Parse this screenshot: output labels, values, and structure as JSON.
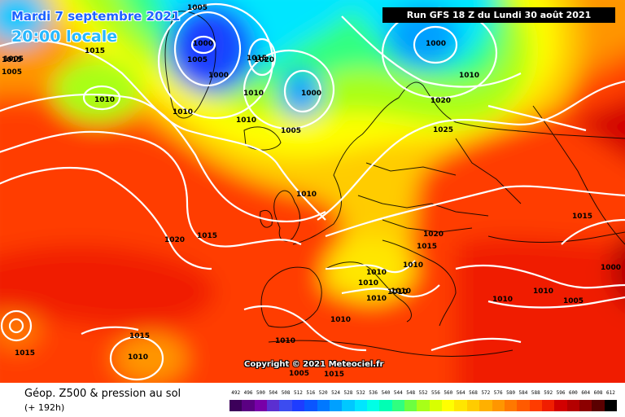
{
  "header": {
    "date": "Mardi 7 septembre 2021",
    "time": "20:00 locale",
    "run": "Run GFS 18 Z du Lundi 30 août 2021"
  },
  "copyright": "Copyright © 2021 Meteociel.fr",
  "footer": {
    "title": "Géop. Z500 & pression au sol",
    "subtitle": "(+ 192h)"
  },
  "scale": {
    "labels": [
      "492",
      "496",
      "500",
      "504",
      "508",
      "512",
      "516",
      "520",
      "524",
      "528",
      "532",
      "536",
      "540",
      "544",
      "548",
      "552",
      "556",
      "560",
      "564",
      "568",
      "572",
      "576",
      "580",
      "584",
      "588",
      "592",
      "596",
      "600",
      "604",
      "608",
      "612"
    ],
    "colors": [
      "#3c005a",
      "#5a0082",
      "#7800a8",
      "#5b2fd0",
      "#3c4cf0",
      "#1e3cff",
      "#0a55ff",
      "#0078ff",
      "#00a0ff",
      "#00c8ff",
      "#00e6ff",
      "#00ffe6",
      "#00ffb4",
      "#30ff80",
      "#6cff40",
      "#a8ff18",
      "#d8ff00",
      "#ffff00",
      "#ffe600",
      "#ffcc00",
      "#ffb000",
      "#ff9600",
      "#ff7800",
      "#ff5a00",
      "#ff3c00",
      "#f01e00",
      "#d20000",
      "#b40000",
      "#8c0000",
      "#5a0000",
      "#000000"
    ]
  },
  "isobars": [
    {
      "text": "1005"
    },
    {
      "text": "1005"
    },
    {
      "text": "1015"
    },
    {
      "text": "1000"
    },
    {
      "text": "1005"
    },
    {
      "text": "1000"
    },
    {
      "text": "1015"
    },
    {
      "text": "1020"
    },
    {
      "text": "1010"
    },
    {
      "text": "1000"
    },
    {
      "text": "1010"
    },
    {
      "text": "1005"
    },
    {
      "text": "1010"
    },
    {
      "text": "1010"
    },
    {
      "text": "1005"
    },
    {
      "text": "1000"
    },
    {
      "text": "1010"
    },
    {
      "text": "1020"
    },
    {
      "text": "1025"
    },
    {
      "text": "1010"
    },
    {
      "text": "1020"
    },
    {
      "text": "1015"
    },
    {
      "text": "1020"
    },
    {
      "text": "1015"
    },
    {
      "text": "1010"
    },
    {
      "text": "1010"
    },
    {
      "text": "1010"
    },
    {
      "text": "1010"
    },
    {
      "text": "1010"
    },
    {
      "text": "1015"
    },
    {
      "text": "1010"
    },
    {
      "text": "1010"
    },
    {
      "text": "1010"
    },
    {
      "text": "1000"
    },
    {
      "text": "1005"
    },
    {
      "text": "1015"
    },
    {
      "text": "1015"
    },
    {
      "text": "1010"
    },
    {
      "text": "1015"
    },
    {
      "text": "1010"
    },
    {
      "text": "1005"
    },
    {
      "text": "1010"
    },
    {
      "text": "1015"
    }
  ]
}
